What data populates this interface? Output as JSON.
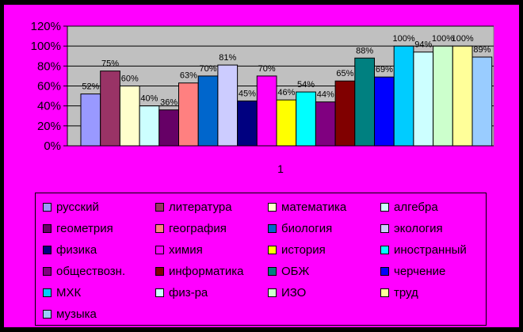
{
  "chart_data": {
    "type": "bar",
    "categories": [
      "1"
    ],
    "ylim": [
      0,
      120
    ],
    "yticks": [
      "0%",
      "20%",
      "40%",
      "60%",
      "80%",
      "100%",
      "120%"
    ],
    "grid": true,
    "legend_placement": "bottom",
    "background_color": "#ff00ff",
    "plot_area_color": "#c0c0c0",
    "series": [
      {
        "name": "русский",
        "value": 52,
        "label": "52%",
        "color": "#9999ff"
      },
      {
        "name": "литература",
        "value": 75,
        "label": "75%",
        "color": "#993366"
      },
      {
        "name": "математика",
        "value": 60,
        "label": "60%",
        "color": "#ffffcc"
      },
      {
        "name": "алгебра",
        "value": 40,
        "label": "40%",
        "color": "#ccffff"
      },
      {
        "name": "геометрия",
        "value": 36,
        "label": "36%",
        "color": "#660066"
      },
      {
        "name": "география",
        "value": 63,
        "label": "63%",
        "color": "#ff8080"
      },
      {
        "name": "биология",
        "value": 70,
        "label": "70%",
        "color": "#0066cc"
      },
      {
        "name": "экология",
        "value": 81,
        "label": "81%",
        "color": "#ccccff"
      },
      {
        "name": "физика",
        "value": 45,
        "label": "45%",
        "color": "#000080"
      },
      {
        "name": "химия",
        "value": 70,
        "label": "70%",
        "color": "#ff00ff"
      },
      {
        "name": "история",
        "value": 46,
        "label": "46%",
        "color": "#ffff00"
      },
      {
        "name": "иностранный",
        "value": 54,
        "label": "54%",
        "color": "#00ffff"
      },
      {
        "name": "обществозн.",
        "value": 44,
        "label": "44%",
        "color": "#800080"
      },
      {
        "name": "информатика",
        "value": 65,
        "label": "65%",
        "color": "#800000"
      },
      {
        "name": "ОБЖ",
        "value": 88,
        "label": "88%",
        "color": "#008080"
      },
      {
        "name": "черчение",
        "value": 69,
        "label": "69%",
        "color": "#0000ff"
      },
      {
        "name": "МХК",
        "value": 100,
        "label": "100%",
        "color": "#00ccff"
      },
      {
        "name": "физ-ра",
        "value": 94,
        "label": "94%",
        "color": "#ccffff"
      },
      {
        "name": "ИЗО",
        "value": 100,
        "label": "100%",
        "color": "#ccffcc"
      },
      {
        "name": "труд",
        "value": 100,
        "label": "100%",
        "color": "#ffff99"
      },
      {
        "name": "музыка",
        "value": 89,
        "label": "89%",
        "color": "#99ccff"
      }
    ]
  }
}
